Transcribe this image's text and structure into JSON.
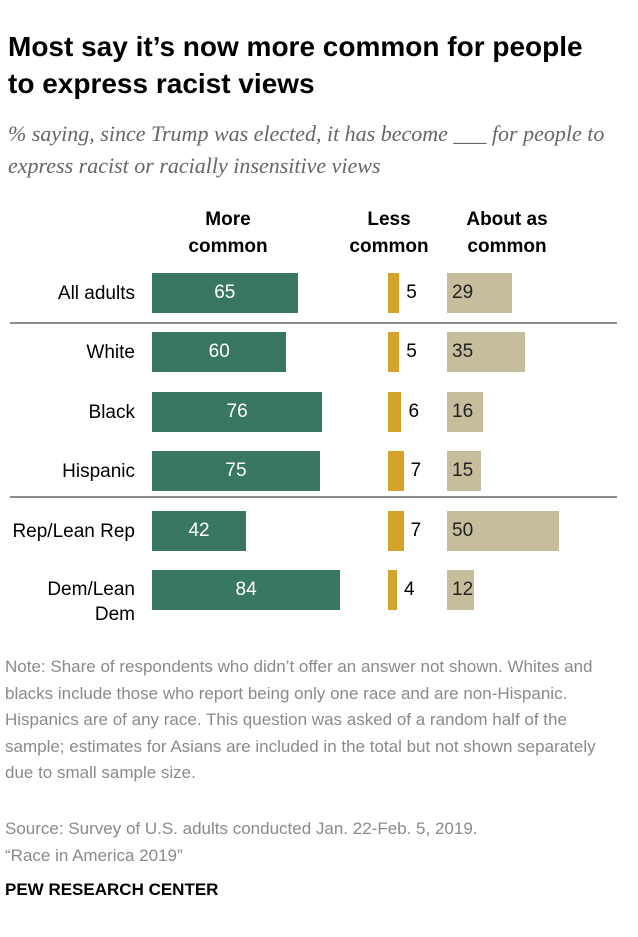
{
  "chart_data": {
    "type": "bar",
    "orientation": "horizontal",
    "title": "Most say it’s now more common for people to express racist views",
    "subtitle": "% saying, since Trump was elected, it has become ___ for people to express racist or racially insensitive views",
    "categories": [
      "All adults",
      "White",
      "Black",
      "Hispanic",
      "Rep/Lean Rep",
      "Dem/Lean Dem"
    ],
    "series": [
      {
        "name": "More common",
        "color": "#3a7763",
        "values": [
          65,
          60,
          76,
          75,
          42,
          84
        ]
      },
      {
        "name": "Less common",
        "color": "#d4a32b",
        "values": [
          5,
          5,
          6,
          7,
          7,
          4
        ]
      },
      {
        "name": "About as common",
        "color": "#c6bd9c",
        "values": [
          29,
          35,
          16,
          15,
          50,
          12
        ]
      }
    ],
    "note": "Note: Share of respondents who didn’t offer an answer not shown. Whites and blacks include those who report being only one race and are non-Hispanic. Hispanics are of any race. This question was asked of a random half of the sample; estimates for Asians are included in the total but not shown separately due to small sample size.",
    "source": "Source: Survey of U.S. adults conducted Jan. 22-Feb. 5, 2019.",
    "source_title": "“Race in America 2019”",
    "credit": "PEW RESEARCH CENTER"
  }
}
